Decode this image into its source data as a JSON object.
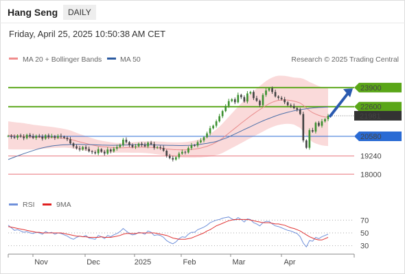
{
  "header": {
    "title": "Hang Seng",
    "timeframe": "DAILY"
  },
  "timestamp": "Friday, April 25, 2025 10:50:38 AM CET",
  "legend": {
    "ma20": "MA 20 + Bollinger Bands",
    "ma50": "MA 50",
    "copyright": "Research © 2025 Trading Central",
    "rsi": "RSI",
    "rsi_ma": "9MA"
  },
  "colors": {
    "green": "#5aa618",
    "blue": "#2a6bd4",
    "red": "#e8737a",
    "price": "#333333",
    "candle_up": "#3d9130",
    "candle_down": "#444444",
    "ma50": "#4b6fa8",
    "band": "#f9d4d4",
    "rsi": "#6f90da",
    "rsi_ma": "#e03030"
  },
  "chart_data": [
    {
      "type": "candlestick",
      "title": "",
      "ylim": [
        16800,
        25200
      ],
      "x_ticks": [
        "Nov",
        "Dec",
        "2025",
        "Feb",
        "Mar",
        "Apr"
      ],
      "levels": [
        {
          "value": 23900,
          "label": "23900",
          "kind": "resistance"
        },
        {
          "value": 22600,
          "label": "22600",
          "kind": "resistance"
        },
        {
          "value": 21981,
          "label": "21981",
          "kind": "last"
        },
        {
          "value": 20580,
          "label": "20580",
          "kind": "pivot"
        },
        {
          "value": 19240,
          "label": "19240",
          "kind": "support"
        },
        {
          "value": 18000,
          "label": "18000",
          "kind": "support"
        }
      ],
      "close": [
        20600,
        20540,
        20480,
        20640,
        20560,
        20450,
        20680,
        20590,
        20470,
        20620,
        20550,
        20420,
        20650,
        20520,
        20590,
        20470,
        20610,
        20550,
        20480,
        20380,
        20100,
        19900,
        19760,
        19680,
        19850,
        19720,
        19560,
        19500,
        19420,
        19700,
        19530,
        19400,
        19680,
        19550,
        19740,
        19850,
        20000,
        20350,
        20180,
        19980,
        19850,
        19900,
        20080,
        20000,
        19900,
        20150,
        20050,
        19800,
        19840,
        19790,
        19600,
        19260,
        19100,
        19000,
        19150,
        19400,
        19520,
        19480,
        19780,
        19970,
        19950,
        20180,
        20300,
        20520,
        20780,
        21130,
        21300,
        21600,
        21950,
        22300,
        22650,
        22980,
        23100,
        22900,
        23400,
        23250,
        22950,
        23500,
        23600,
        23180,
        23000,
        22700,
        23400,
        23700,
        23850,
        23600,
        23300,
        23200,
        23100,
        22900,
        22700,
        22650,
        22500,
        22400,
        22100,
        20300,
        19800,
        21000,
        20900,
        21500,
        21300,
        21600,
        21750,
        21981
      ],
      "ma20": [
        20650,
        20630,
        20610,
        20600,
        20590,
        20580,
        20560,
        20545,
        20530,
        20525,
        20520,
        20515,
        20510,
        20505,
        20500,
        20490,
        20480,
        20465,
        20450,
        20420,
        20380,
        20320,
        20260,
        20200,
        20150,
        20100,
        20040,
        19990,
        19950,
        19910,
        19880,
        19860,
        19850,
        19830,
        19810,
        19800,
        19800,
        19800,
        19810,
        19815,
        19820,
        19830,
        19840,
        19845,
        19840,
        19835,
        19830,
        19810,
        19790,
        19770,
        19750,
        19720,
        19700,
        19680,
        19670,
        19665,
        19660,
        19660,
        19670,
        19690,
        19710,
        19740,
        19780,
        19840,
        19900,
        19980,
        20070,
        20180,
        20300,
        20450,
        20620,
        20790,
        20960,
        21130,
        21300,
        21470,
        21630,
        21800,
        21960,
        22110,
        22260,
        22400,
        22540,
        22680,
        22800,
        22900,
        22980,
        23030,
        23050,
        23060,
        23050,
        23020,
        22980,
        22920,
        22850,
        22700,
        22500,
        22330,
        22190,
        22090,
        22010,
        21940,
        21900,
        21880
      ],
      "ma50": [
        19000,
        19080,
        19160,
        19240,
        19320,
        19400,
        19470,
        19540,
        19610,
        19680,
        19740,
        19790,
        19840,
        19880,
        19920,
        19950,
        19970,
        19990,
        20000,
        20010,
        20020,
        20025,
        20030,
        20030,
        20025,
        20020,
        20015,
        20010,
        20000,
        19990,
        19985,
        19980,
        19975,
        19970,
        19970,
        19975,
        19980,
        19985,
        19990,
        19995,
        20000,
        20005,
        20010,
        20010,
        20005,
        20000,
        19995,
        19990,
        19985,
        19980,
        19975,
        19970,
        19965,
        19960,
        19955,
        19950,
        19950,
        19955,
        19960,
        19970,
        19990,
        20010,
        20040,
        20070,
        20100,
        20140,
        20180,
        20230,
        20300,
        20380,
        20450,
        20540,
        20640,
        20740,
        20840,
        20940,
        21040,
        21140,
        21240,
        21340,
        21440,
        21540,
        21630,
        21720,
        21800,
        21880,
        21960,
        22030,
        22100,
        22160,
        22220,
        22270,
        22320,
        22360,
        22400,
        22430,
        22460,
        22490,
        22510,
        22530,
        22545,
        22555,
        22565,
        22575
      ],
      "band_width": [
        950,
        940,
        930,
        920,
        910,
        900,
        880,
        860,
        840,
        820,
        800,
        780,
        760,
        740,
        720,
        700,
        680,
        660,
        640,
        620,
        600,
        580,
        560,
        540,
        520,
        500,
        480,
        460,
        440,
        420,
        400,
        380,
        360,
        350,
        340,
        330,
        330,
        330,
        340,
        350,
        360,
        370,
        380,
        390,
        400,
        410,
        420,
        430,
        440,
        450,
        460,
        470,
        480,
        490,
        500,
        510,
        520,
        530,
        540,
        560,
        580,
        600,
        640,
        680,
        720,
        770,
        820,
        880,
        940,
        1000,
        1060,
        1120,
        1180,
        1240,
        1300,
        1350,
        1400,
        1450,
        1500,
        1540,
        1580,
        1610,
        1640,
        1660,
        1680,
        1690,
        1690,
        1680,
        1660,
        1640,
        1620,
        1600,
        1600,
        1650,
        1700,
        1800,
        1900,
        1950,
        2000,
        2000,
        1990,
        1980,
        1970,
        1960
      ]
    },
    {
      "type": "line",
      "title": "",
      "ylim": [
        20,
        80
      ],
      "y_ticks": [
        70,
        50,
        30
      ],
      "series": [
        {
          "name": "RSI",
          "values": [
            62,
            58,
            54,
            55,
            53,
            51,
            52,
            50,
            49,
            51,
            50,
            48,
            52,
            50,
            51,
            48,
            50,
            49,
            47,
            45,
            42,
            40,
            43,
            45,
            44,
            46,
            42,
            41,
            40,
            46,
            44,
            41,
            46,
            44,
            47,
            49,
            52,
            57,
            53,
            49,
            47,
            48,
            51,
            50,
            48,
            53,
            51,
            46,
            47,
            46,
            43,
            38,
            35,
            33,
            36,
            41,
            44,
            43,
            48,
            51,
            51,
            55,
            57,
            59,
            62,
            66,
            68,
            70,
            71,
            73,
            74,
            75,
            72,
            70,
            74,
            71,
            67,
            72,
            71,
            66,
            64,
            61,
            66,
            68,
            68,
            64,
            61,
            60,
            58,
            56,
            54,
            53,
            51,
            49,
            44,
            34,
            28,
            38,
            37,
            43,
            41,
            44,
            46,
            48
          ]
        },
        {
          "name": "9MA",
          "values": [
            60,
            59,
            58,
            57,
            56,
            55,
            54,
            53,
            52,
            51,
            51,
            50,
            50,
            50,
            50,
            50,
            50,
            50,
            49,
            48,
            47,
            46,
            45,
            45,
            44,
            44,
            43,
            43,
            43,
            43,
            44,
            43,
            43,
            43,
            44,
            45,
            46,
            48,
            49,
            49,
            49,
            49,
            50,
            50,
            50,
            50,
            50,
            50,
            49,
            48,
            47,
            46,
            44,
            42,
            41,
            40,
            40,
            40,
            41,
            42,
            44,
            46,
            48,
            50,
            53,
            55,
            58,
            61,
            63,
            65,
            67,
            69,
            70,
            71,
            71,
            71,
            71,
            71,
            70,
            69,
            68,
            67,
            66,
            66,
            66,
            65,
            64,
            64,
            63,
            62,
            60,
            58,
            57,
            55,
            53,
            50,
            47,
            44,
            42,
            40,
            39,
            39,
            41,
            43
          ]
        }
      ]
    }
  ]
}
